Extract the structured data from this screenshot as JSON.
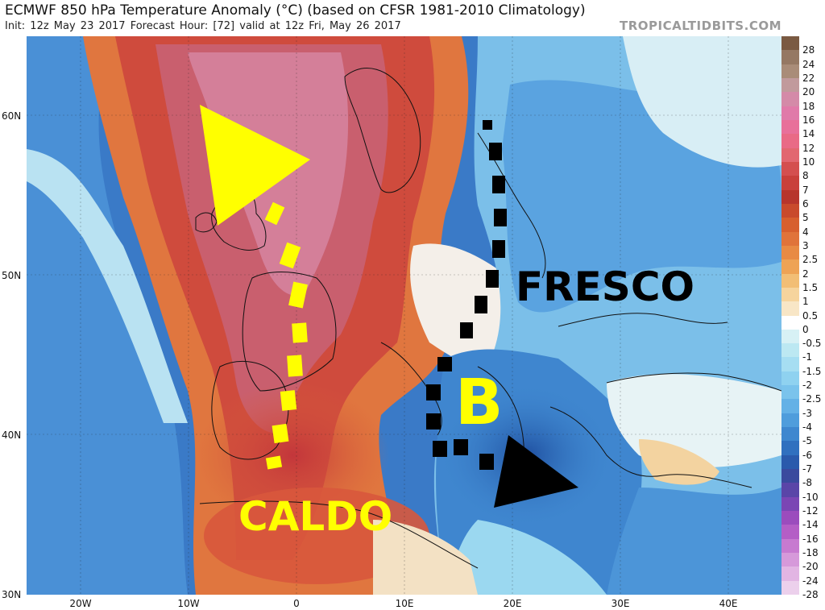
{
  "header": {
    "title": "ECMWF 850 hPa Temperature Anomaly (°C) (based on CFSR 1981-2010 Climatology)",
    "subtitle": "Init: 12z May 23 2017   Forecast Hour: [72]   valid at 12z Fri, May 26 2017",
    "brand": "TROPICALTIDBITS.COM"
  },
  "map": {
    "lat_labels": [
      "60N",
      "50N",
      "40N",
      "30N"
    ],
    "lon_labels": [
      "20W",
      "10W",
      "0",
      "10E",
      "20E",
      "30E",
      "40E"
    ]
  },
  "colorbar": {
    "labels": [
      "28",
      "24",
      "22",
      "20",
      "18",
      "16",
      "14",
      "12",
      "10",
      "8",
      "7",
      "6",
      "5",
      "4",
      "3",
      "2.5",
      "2",
      "1.5",
      "1",
      "0.5",
      "0",
      "-0.5",
      "-1",
      "-1.5",
      "-2",
      "-2.5",
      "-3",
      "-4",
      "-5",
      "-6",
      "-7",
      "-8",
      "-10",
      "-12",
      "-14",
      "-16",
      "-18",
      "-20",
      "-24",
      "-28"
    ],
    "colors": [
      "#7a5a42",
      "#957863",
      "#a98c78",
      "#c19a9c",
      "#d48aa8",
      "#e07aa9",
      "#e8709a",
      "#e96a86",
      "#e26770",
      "#d44f4f",
      "#c9403b",
      "#b7352c",
      "#c94a2c",
      "#d75f2e",
      "#e0733a",
      "#e88a44",
      "#eea355",
      "#f2be75",
      "#f6d49d",
      "#f8e6c6",
      "#ffffff",
      "#d7f1f5",
      "#bce8f2",
      "#a6def2",
      "#8fd2f0",
      "#7ac3ec",
      "#64b1e6",
      "#4f9ddc",
      "#3e87cf",
      "#3070bf",
      "#2a5aac",
      "#3a4a9e",
      "#5a45a8",
      "#7b46b4",
      "#9b4cbd",
      "#b45ec6",
      "#c77ad0",
      "#d699da",
      "#e2b5e3",
      "#ecd0ec"
    ]
  },
  "annotations": {
    "caldo": "CALDO",
    "fresco": "FRESCO",
    "b": "B"
  }
}
